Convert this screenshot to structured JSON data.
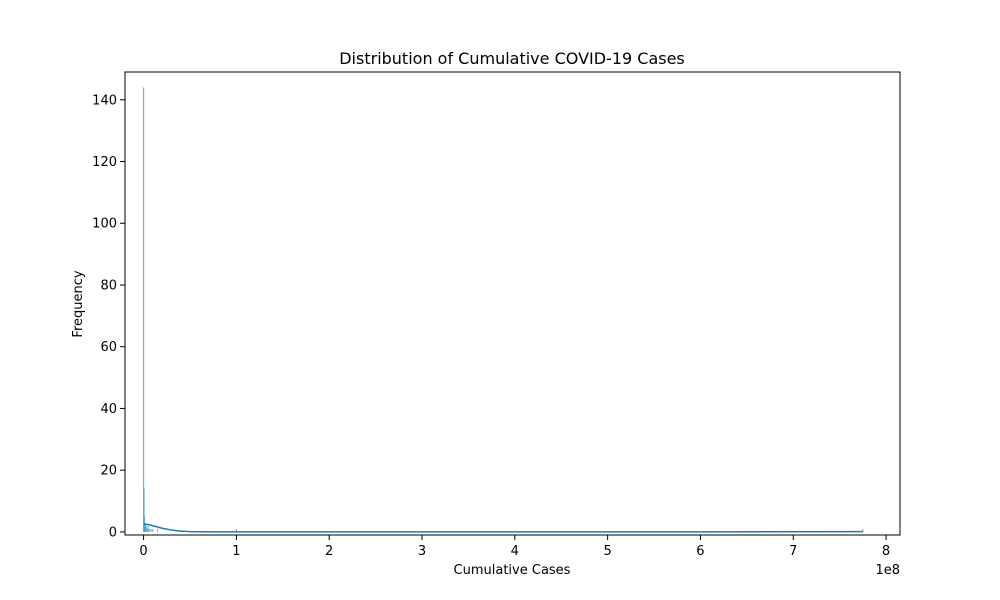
{
  "chart_data": {
    "type": "bar",
    "title": "Distribution of Cumulative COVID-19 Cases",
    "xlabel": "Cumulative Cases",
    "ylabel": "Frequency",
    "x_offset_label": "1e8",
    "xlim": [
      -20000000,
      815000000
    ],
    "ylim": [
      -1,
      149
    ],
    "x_tick_values": [
      0,
      100000000,
      200000000,
      300000000,
      400000000,
      500000000,
      600000000,
      700000000,
      800000000
    ],
    "x_tick_labels": [
      "0",
      "1",
      "2",
      "3",
      "4",
      "5",
      "6",
      "7",
      "8"
    ],
    "y_tick_values": [
      0,
      20,
      40,
      60,
      80,
      100,
      120,
      140
    ],
    "y_tick_labels": [
      "0",
      "20",
      "40",
      "60",
      "80",
      "100",
      "120",
      "140"
    ],
    "grid": false,
    "colors": {
      "bars": "#4c9cc4",
      "kde": "#1f77b4"
    },
    "histogram": {
      "x": [
        0,
        500000,
        1000000,
        1500000,
        2000000,
        3000000,
        4000000,
        5000000,
        6000000,
        8000000,
        10000000,
        15000000,
        100000000,
        775000000
      ],
      "counts": [
        144,
        14,
        5,
        3,
        2,
        2,
        1,
        2,
        1,
        1,
        1,
        1,
        1,
        1
      ]
    },
    "kde": {
      "x": [
        0,
        2000000,
        5000000,
        10000000,
        15000000,
        20000000,
        25000000,
        30000000,
        35000000,
        40000000,
        50000000,
        60000000,
        80000000,
        100000000,
        200000000,
        400000000,
        600000000,
        775000000
      ],
      "y": [
        2.5,
        2.5,
        2.4,
        2.0,
        1.6,
        1.2,
        0.9,
        0.6,
        0.4,
        0.25,
        0.1,
        0.05,
        0.02,
        0.01,
        0.0,
        0.0,
        0.0,
        0.1
      ]
    }
  }
}
